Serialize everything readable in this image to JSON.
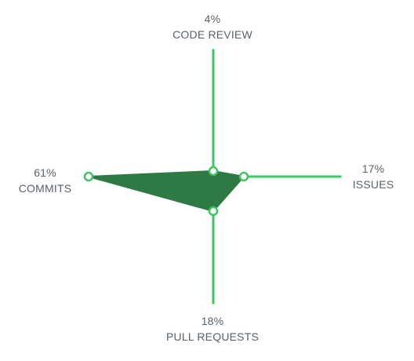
{
  "activity": {
    "axes": [
      {
        "key": "code_review",
        "label": "CODE REVIEW",
        "percent": "4%",
        "value": 4
      },
      {
        "key": "issues",
        "label": "ISSUES",
        "percent": "17%",
        "value": 17
      },
      {
        "key": "pull_requests",
        "label": "PULL REQUESTS",
        "percent": "18%",
        "value": 18
      },
      {
        "key": "commits",
        "label": "COMMITS",
        "percent": "61%",
        "value": 61
      }
    ]
  },
  "colors": {
    "axis": "#40c463",
    "area": "#2f7a44",
    "vertex_fill": "#ffffff",
    "text": "#586069"
  }
}
